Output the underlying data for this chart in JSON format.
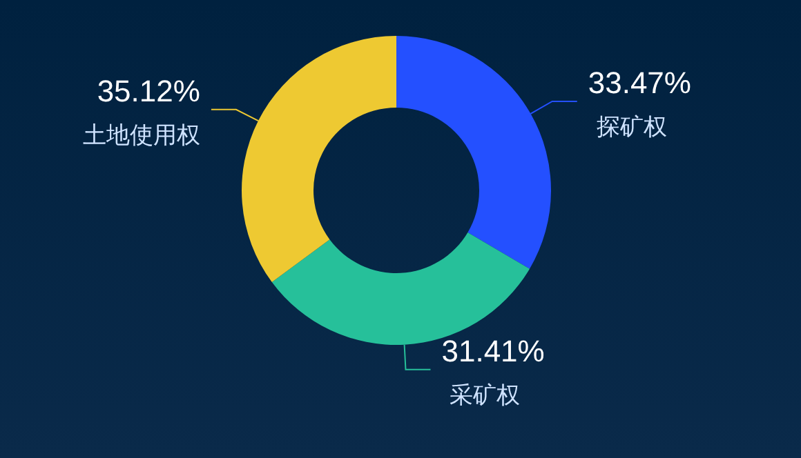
{
  "chart_data": {
    "type": "donut",
    "categories": [
      "探矿权",
      "采矿权",
      "土地使用权"
    ],
    "values": [
      33.47,
      31.41,
      35.12
    ],
    "colors": [
      "#2450ff",
      "#26c09a",
      "#eec932"
    ],
    "value_labels": [
      "33.47%",
      "31.41%",
      "35.12%"
    ]
  }
}
